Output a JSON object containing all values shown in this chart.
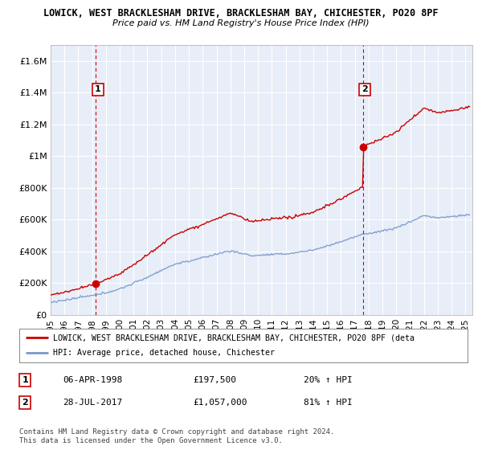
{
  "title1": "LOWICK, WEST BRACKLESHAM DRIVE, BRACKLESHAM BAY, CHICHESTER, PO20 8PF",
  "title2": "Price paid vs. HM Land Registry's House Price Index (HPI)",
  "ylim": [
    0,
    1700000
  ],
  "yticks": [
    0,
    200000,
    400000,
    600000,
    800000,
    1000000,
    1200000,
    1400000,
    1600000
  ],
  "ytick_labels": [
    "£0",
    "£200K",
    "£400K",
    "£600K",
    "£800K",
    "£1M",
    "£1.2M",
    "£1.4M",
    "£1.6M"
  ],
  "background_color": "#ffffff",
  "plot_bg_color": "#e8eef8",
  "grid_color": "#ffffff",
  "hpi_color": "#7799cc",
  "price_color": "#cc0000",
  "annotation1_date": "06-APR-1998",
  "annotation1_price": "£197,500",
  "annotation1_hpi": "20% ↑ HPI",
  "annotation2_date": "28-JUL-2017",
  "annotation2_price": "£1,057,000",
  "annotation2_hpi": "81% ↑ HPI",
  "legend_label1": "LOWICK, WEST BRACKLESHAM DRIVE, BRACKLESHAM BAY, CHICHESTER, PO20 8PF (deta",
  "legend_label2": "HPI: Average price, detached house, Chichester",
  "footer": "Contains HM Land Registry data © Crown copyright and database right 2024.\nThis data is licensed under the Open Government Licence v3.0.",
  "sale1_x": 1998.27,
  "sale1_y": 197500,
  "sale2_x": 2017.57,
  "sale2_y": 1057000,
  "xmin": 1995.0,
  "xmax": 2025.5
}
